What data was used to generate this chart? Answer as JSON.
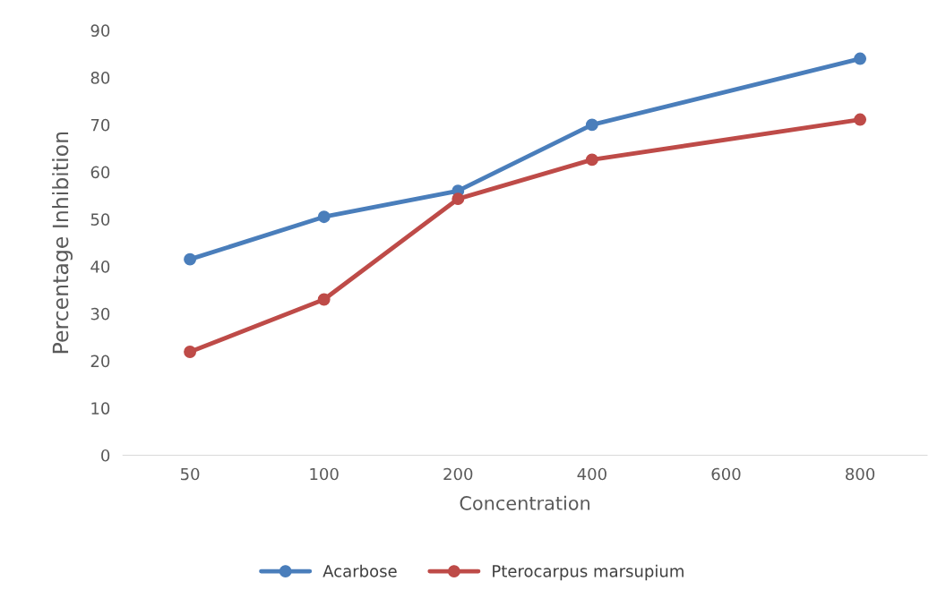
{
  "chart_data": {
    "type": "line",
    "xlabel": "Concentration",
    "ylabel": "Percentage Inhibition",
    "categories": [
      "50",
      "100",
      "200",
      "400",
      "600",
      "800"
    ],
    "series": [
      {
        "name": "Acarbose",
        "color": "#4a7ebb",
        "values": [
          41.5,
          50.5,
          56.0,
          70.0,
          null,
          84.0
        ]
      },
      {
        "name": "Pterocarpus marsupium",
        "color": "#be4b48",
        "values": [
          21.9,
          33.0,
          54.3,
          62.6,
          null,
          71.1
        ]
      }
    ],
    "ylim": [
      0,
      90
    ],
    "yticks": [
      0,
      10,
      20,
      30,
      40,
      50,
      60,
      70,
      80,
      90
    ],
    "grid": false,
    "legend": "bottom",
    "marker": "circle",
    "line_style": "solid"
  }
}
